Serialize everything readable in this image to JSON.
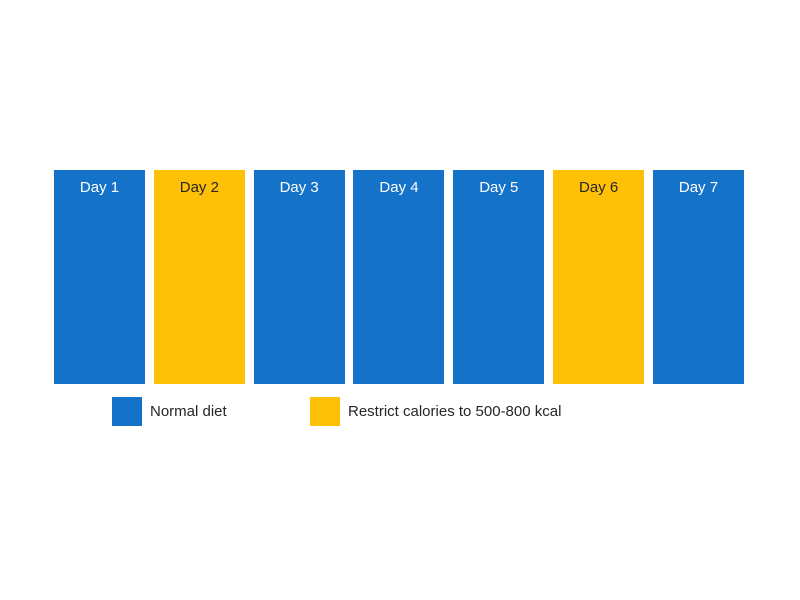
{
  "background": "#FFFFFF",
  "colors": {
    "normal": "#1472C8",
    "restricted": "#FFC107",
    "label_on_normal": "#FFFFFF",
    "label_on_restricted": "#262626",
    "legend_text": "#262626"
  },
  "schedule": {
    "days": [
      {
        "label": "Day 1",
        "diet": "normal"
      },
      {
        "label": "Day 2",
        "diet": "restricted"
      },
      {
        "label": "Day 3",
        "diet": "normal"
      },
      {
        "label": "Day 4",
        "diet": "normal"
      },
      {
        "label": "Day 5",
        "diet": "normal"
      },
      {
        "label": "Day 6",
        "diet": "restricted"
      },
      {
        "label": "Day 7",
        "diet": "normal"
      }
    ]
  },
  "legend": {
    "items": [
      {
        "label": "Normal diet",
        "diet": "normal"
      },
      {
        "label": "Restrict calories to 500-800 kcal",
        "diet": "restricted"
      }
    ]
  }
}
